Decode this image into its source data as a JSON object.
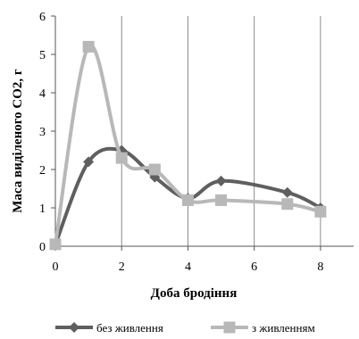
{
  "chart_data": {
    "type": "line",
    "title": "",
    "xlabel": "Доба бродіння",
    "ylabel": "Маса виділеного CO2, г",
    "xlim": [
      0,
      9
    ],
    "ylim": [
      0,
      6
    ],
    "xticks": [
      0,
      2,
      4,
      6,
      8
    ],
    "yticks": [
      0,
      1,
      2,
      3,
      4,
      5,
      6
    ],
    "grid": "vertical",
    "smooth": true,
    "legend_position": "bottom",
    "series": [
      {
        "name": "без живлення",
        "color": "#5f5f5f",
        "marker": "diamond",
        "x": [
          0,
          1,
          2,
          3,
          4,
          5,
          7,
          8
        ],
        "y": [
          0.05,
          2.2,
          2.5,
          1.8,
          1.25,
          1.7,
          1.4,
          1.0
        ]
      },
      {
        "name": "з живленням",
        "color": "#b8b8b8",
        "marker": "square",
        "x": [
          0,
          1,
          2,
          3,
          4,
          5,
          7,
          8
        ],
        "y": [
          0.05,
          5.2,
          2.3,
          2.0,
          1.2,
          1.2,
          1.1,
          0.9
        ]
      }
    ]
  }
}
